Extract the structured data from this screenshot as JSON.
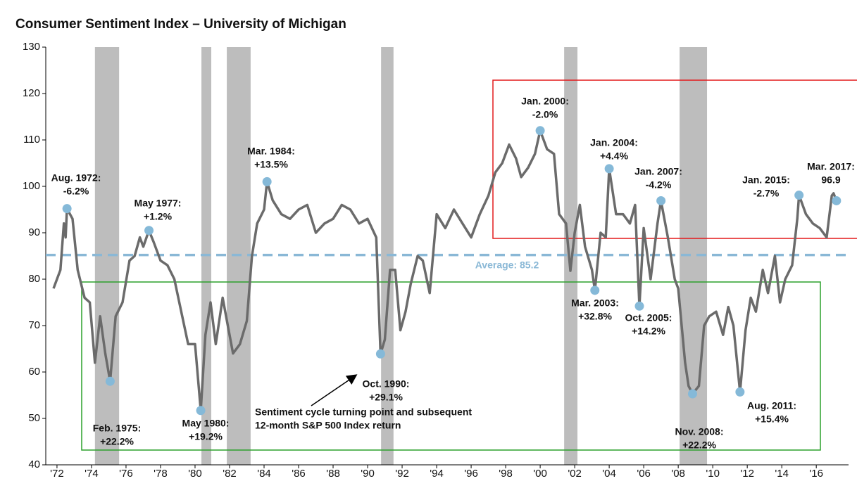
{
  "chart_data": {
    "type": "line",
    "title": "Consumer Sentiment Index – University of Michigan",
    "series": [
      {
        "name": "Consumer Sentiment",
        "color": "#6b6b6b",
        "x": [
          1971.8,
          1972.0,
          1972.2,
          1972.4,
          1972.5,
          1972.58,
          1972.9,
          1973.2,
          1973.6,
          1973.9,
          1974.2,
          1974.5,
          1974.8,
          1975.08,
          1975.4,
          1975.8,
          1976.2,
          1976.5,
          1976.8,
          1977.0,
          1977.33,
          1977.6,
          1978.0,
          1978.4,
          1978.8,
          1979.2,
          1979.6,
          1980.0,
          1980.33,
          1980.6,
          1980.9,
          1981.2,
          1981.6,
          1981.9,
          1982.2,
          1982.6,
          1983.0,
          1983.3,
          1983.6,
          1984.0,
          1984.17,
          1984.5,
          1985.0,
          1985.5,
          1986.0,
          1986.5,
          1987.0,
          1987.5,
          1988.0,
          1988.5,
          1989.0,
          1989.5,
          1990.0,
          1990.5,
          1990.75,
          1991.0,
          1991.3,
          1991.6,
          1991.9,
          1992.2,
          1992.5,
          1992.9,
          1993.2,
          1993.6,
          1994.0,
          1994.5,
          1995.0,
          1995.5,
          1996.0,
          1996.5,
          1997.0,
          1997.4,
          1997.8,
          1998.2,
          1998.6,
          1998.9,
          1999.3,
          1999.7,
          2000.0,
          2000.4,
          2000.8,
          2001.1,
          2001.5,
          2001.75,
          2002.0,
          2002.3,
          2002.6,
          2003.0,
          2003.17,
          2003.5,
          2003.8,
          2004.0,
          2004.4,
          2004.8,
          2005.2,
          2005.5,
          2005.75,
          2006.0,
          2006.4,
          2006.8,
          2007.0,
          2007.4,
          2007.8,
          2008.0,
          2008.4,
          2008.6,
          2008.83,
          2009.2,
          2009.5,
          2009.8,
          2010.2,
          2010.6,
          2010.9,
          2011.2,
          2011.58,
          2011.9,
          2012.2,
          2012.5,
          2012.9,
          2013.2,
          2013.6,
          2013.9,
          2014.2,
          2014.6,
          2014.9,
          2015.0,
          2015.4,
          2015.8,
          2016.2,
          2016.6,
          2016.9,
          2017.0,
          2017.17
        ],
        "values": [
          78,
          80,
          82,
          92,
          89,
          95.2,
          93,
          82,
          76,
          75,
          62,
          72,
          64,
          58,
          72,
          75,
          84,
          85,
          89,
          87,
          90.5,
          88,
          84,
          83,
          80,
          73,
          66,
          66,
          51.7,
          68,
          75,
          66,
          76,
          70,
          64,
          66,
          71,
          85,
          92,
          95,
          101,
          97,
          94,
          93,
          95,
          96,
          90,
          92,
          93,
          96,
          95,
          92,
          93,
          89,
          63.9,
          67,
          82,
          82,
          69,
          73,
          79,
          85,
          84,
          77,
          94,
          91,
          95,
          92,
          89,
          94,
          98,
          103,
          105,
          109,
          106,
          102,
          104,
          107,
          112,
          108,
          107,
          94,
          92,
          81.8,
          90,
          96,
          87,
          82,
          77.6,
          90,
          89,
          103.8,
          94,
          94,
          92,
          96,
          74.2,
          91,
          80,
          92,
          96.9,
          89,
          80,
          78,
          62,
          57,
          55.3,
          57,
          70,
          72,
          73,
          68,
          74,
          70,
          55.7,
          69,
          76,
          73,
          82,
          77,
          85,
          75,
          80,
          83,
          93,
          98.1,
          94,
          92,
          91,
          89,
          98,
          98.5,
          96.9
        ]
      }
    ],
    "recessions": [
      [
        1974.2,
        1975.6
      ],
      [
        1980.37,
        1980.94
      ],
      [
        1981.84,
        1983.22
      ],
      [
        1990.78,
        1991.5
      ],
      [
        2001.39,
        2002.16
      ],
      [
        2008.08,
        2009.67
      ]
    ],
    "average": {
      "value": 85.2,
      "label": "Average: 85.2"
    },
    "annotations": [
      {
        "x": 1972.58,
        "y": 95.2,
        "label": [
          "Aug. 1972:",
          "-6.2%"
        ]
      },
      {
        "x": 1975.08,
        "y": 58,
        "label": [
          "Feb. 1975:",
          "+22.2%"
        ]
      },
      {
        "x": 1977.33,
        "y": 90.5,
        "label": [
          "May 1977:",
          "+1.2%"
        ]
      },
      {
        "x": 1980.33,
        "y": 51.7,
        "label": [
          "May 1980:",
          "+19.2%"
        ]
      },
      {
        "x": 1984.17,
        "y": 101,
        "label": [
          "Mar. 1984:",
          "+13.5%"
        ]
      },
      {
        "x": 1990.75,
        "y": 63.9,
        "label": [
          "Oct. 1990:",
          "+29.1%"
        ]
      },
      {
        "x": 2000.0,
        "y": 112,
        "label": [
          "Jan. 2000:",
          "-2.0%"
        ]
      },
      {
        "x": 2003.17,
        "y": 77.6,
        "label": [
          "Mar. 2003:",
          "+32.8%"
        ]
      },
      {
        "x": 2004.0,
        "y": 103.8,
        "label": [
          "Jan. 2004:",
          "+4.4%"
        ]
      },
      {
        "x": 2005.75,
        "y": 74.2,
        "label": [
          "Oct. 2005:",
          "+14.2%"
        ]
      },
      {
        "x": 2007.0,
        "y": 96.9,
        "label": [
          "Jan. 2007:",
          "-4.2%"
        ]
      },
      {
        "x": 2008.83,
        "y": 55.3,
        "label": [
          "Nov. 2008:",
          "+22.2%"
        ]
      },
      {
        "x": 2011.58,
        "y": 55.7,
        "label": [
          "Aug. 2011:",
          "+15.4%"
        ]
      },
      {
        "x": 2015.0,
        "y": 98.1,
        "label": [
          "Jan. 2015:",
          "-2.7%"
        ]
      },
      {
        "x": 2017.17,
        "y": 96.9,
        "label": [
          "Mar. 2017:",
          "96.9"
        ]
      }
    ],
    "note": [
      "Sentiment cycle turning point and subsequent",
      "12-month S&P 500 Index return"
    ],
    "xlim": [
      1971.35,
      2017.87
    ],
    "ylim": [
      40,
      130
    ],
    "yticks": [
      40,
      50,
      60,
      70,
      80,
      90,
      100,
      110,
      120,
      130
    ],
    "xticks": [
      {
        "value": 1972,
        "label": "'72"
      },
      {
        "value": 1974,
        "label": "'74"
      },
      {
        "value": 1976,
        "label": "'76"
      },
      {
        "value": 1978,
        "label": "'78"
      },
      {
        "value": 1980,
        "label": "'80"
      },
      {
        "value": 1982,
        "label": "'82"
      },
      {
        "value": 1984,
        "label": "'84"
      },
      {
        "value": 1986,
        "label": "'86"
      },
      {
        "value": 1988,
        "label": "'88"
      },
      {
        "value": 1990,
        "label": "'90"
      },
      {
        "value": 1992,
        "label": "'92"
      },
      {
        "value": 1994,
        "label": "'94"
      },
      {
        "value": 1996,
        "label": "'96"
      },
      {
        "value": 1998,
        "label": "'98"
      },
      {
        "value": 2000,
        "label": "'00"
      },
      {
        "value": 2002,
        "label": "'02"
      },
      {
        "value": 2004,
        "label": "'04"
      },
      {
        "value": 2006,
        "label": "'06"
      },
      {
        "value": 2008,
        "label": "'08"
      },
      {
        "value": 2010,
        "label": "'10"
      },
      {
        "value": 2012,
        "label": "'12"
      },
      {
        "value": 2014,
        "label": "'14"
      },
      {
        "value": 2016,
        "label": "'16"
      }
    ]
  }
}
